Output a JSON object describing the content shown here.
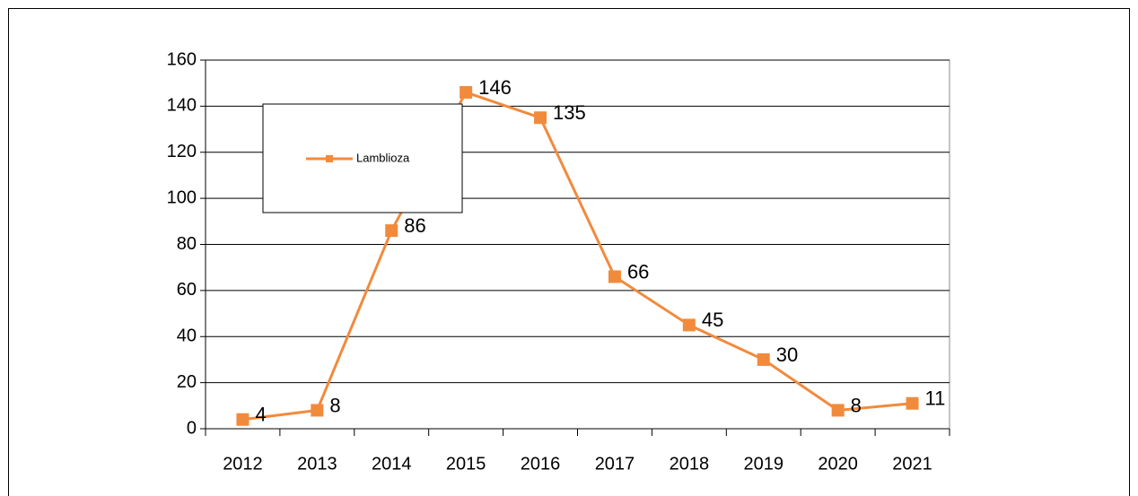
{
  "chart_data": {
    "type": "line",
    "categories": [
      "2012",
      "2013",
      "2014",
      "2015",
      "2016",
      "2017",
      "2018",
      "2019",
      "2020",
      "2021"
    ],
    "series": [
      {
        "name": "Lamblioza",
        "color": "#f28a3c",
        "values": [
          4,
          8,
          86,
          146,
          135,
          66,
          45,
          30,
          8,
          11
        ]
      }
    ],
    "ylim": [
      0,
      160
    ],
    "yticks": [
      0,
      20,
      40,
      60,
      80,
      100,
      120,
      140,
      160
    ],
    "grid": true,
    "legend": "top-left"
  }
}
